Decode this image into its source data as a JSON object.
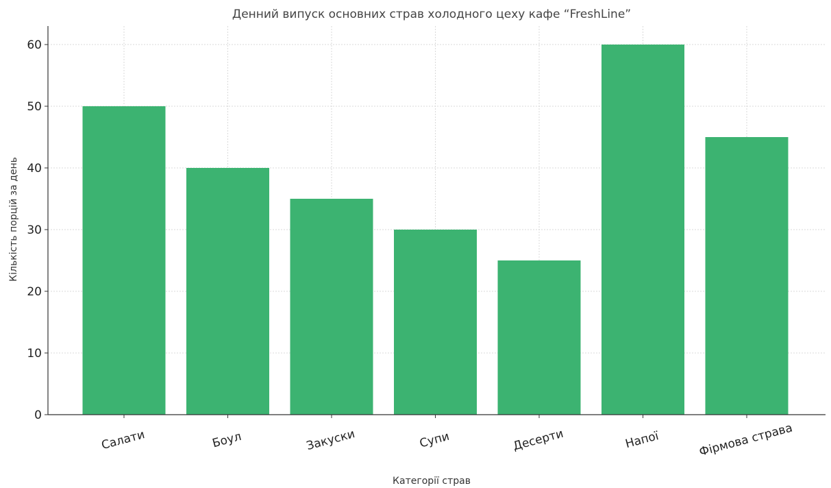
{
  "chart_data": {
    "type": "bar",
    "title": "Денний випуск основних страв холодного цеху кафе “FreshLine”",
    "xlabel": "Категорії страв",
    "ylabel": "Кількість порцій за день",
    "categories": [
      "Салати",
      "Боул",
      "Закуски",
      "Супи",
      "Десерти",
      "Напої",
      "Фірмова страва"
    ],
    "values": [
      50,
      40,
      35,
      30,
      25,
      60,
      45
    ],
    "ylim": [
      0,
      63
    ],
    "yticks": [
      0,
      10,
      20,
      30,
      40,
      50,
      60
    ],
    "grid": true,
    "bar_color": "#3cb371"
  }
}
